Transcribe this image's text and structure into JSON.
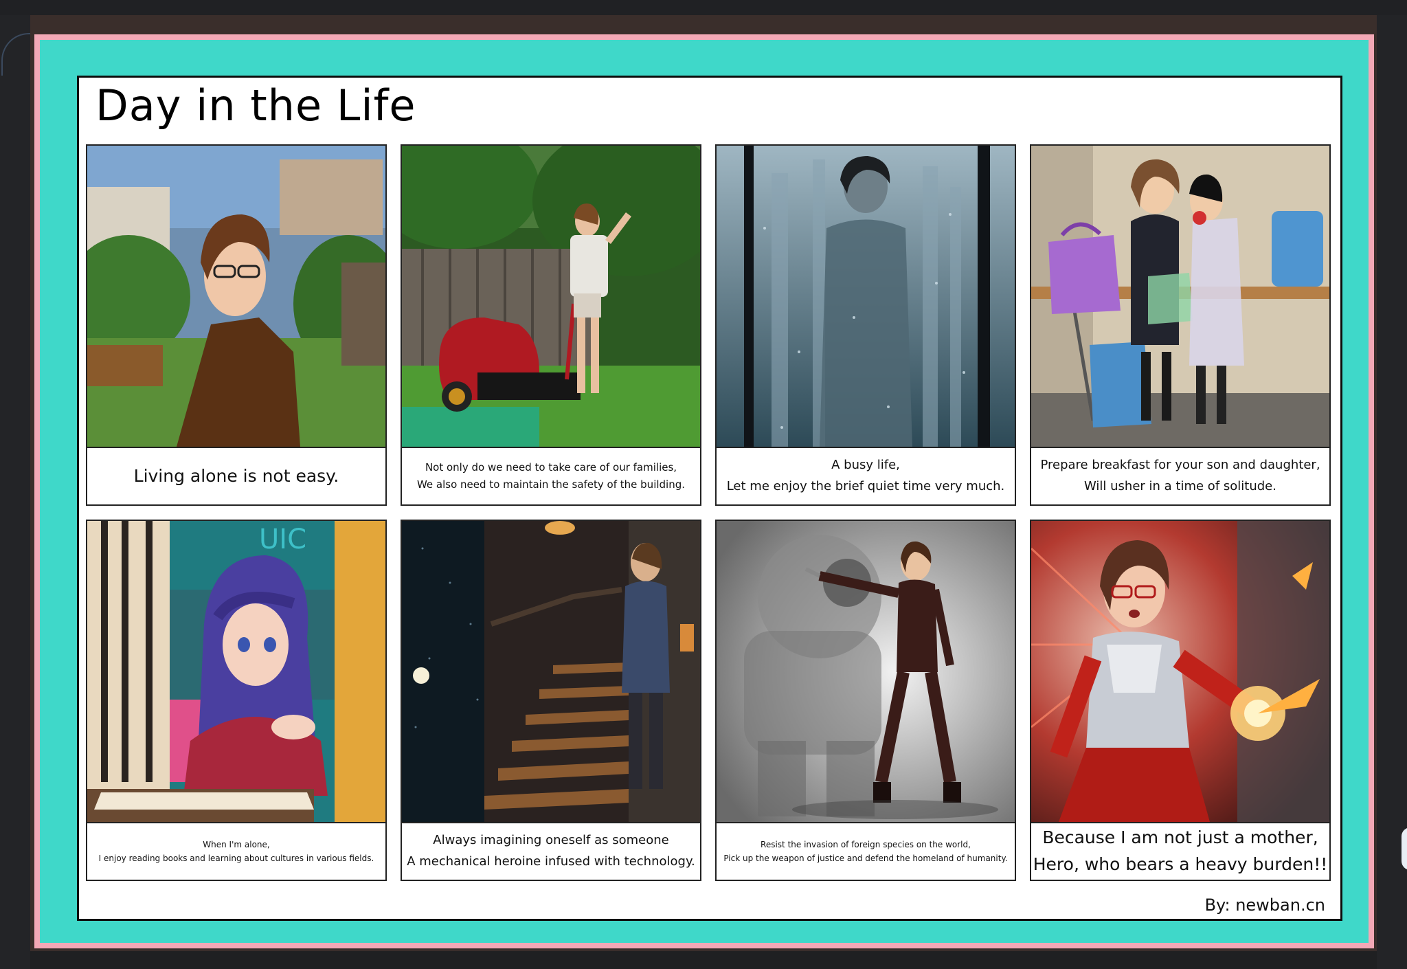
{
  "board": {
    "title": "Day in the Life",
    "credit": "By: newban.cn"
  },
  "panels": [
    {
      "line1": "Living alone is not easy.",
      "line2": "",
      "scene": "woman-with-glasses-outdoors"
    },
    {
      "line1": "Not only do we need to take care of our families,",
      "line2": "We also need to maintain the safety of the building.",
      "scene": "woman-mowing-lawn"
    },
    {
      "line1": "A busy life,",
      "line2": "Let me enjoy the brief quiet time very much.",
      "scene": "figure-behind-foggy-glass"
    },
    {
      "line1": "Prepare breakfast for your son and daughter,",
      "line2": "Will usher in a time of solitude.",
      "scene": "children-with-lunch-bags"
    },
    {
      "line1": "When I'm alone,",
      "line2": "I enjoy reading books and learning about cultures in various fields.",
      "scene": "purple-haired-girl-reading"
    },
    {
      "line1": "Always imagining oneself as someone",
      "line2": "A mechanical heroine infused with technology.",
      "scene": "woman-on-dark-staircase"
    },
    {
      "line1": "Resist the invasion of foreign species on the world,",
      "line2": "Pick up the weapon of justice and defend the homeland of humanity.",
      "scene": "heroine-in-dark-armor"
    },
    {
      "line1": "Because I am not just a mother,",
      "line2": "Hero, who bears a heavy burden!!",
      "scene": "heroine-in-red-armor"
    }
  ]
}
